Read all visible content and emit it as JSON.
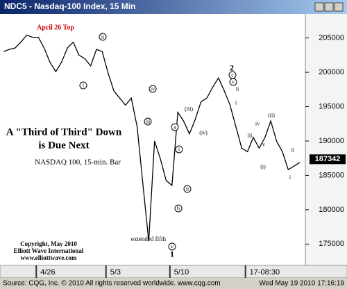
{
  "chart_data": {
    "type": "line",
    "title": "NDC5 - Nasdaq-100 Index, 15 Min",
    "categories": [
      null,
      null,
      null,
      null,
      null,
      null,
      "4/26",
      null,
      null,
      null,
      null,
      null,
      null,
      null,
      null,
      null,
      null,
      null,
      "5/3",
      null,
      null,
      null,
      null,
      null,
      null,
      null,
      null,
      null,
      null,
      "5/10",
      null,
      null,
      null,
      null,
      null,
      null,
      null,
      null,
      null,
      null,
      null,
      null,
      "17-08:30",
      null,
      null,
      null,
      null,
      null,
      null,
      null,
      null,
      null
    ],
    "series": [
      {
        "name": "NDC5",
        "color": "#000000",
        "values": [
          203020,
          203330,
          203540,
          204380,
          205420,
          205100,
          205100,
          203540,
          201460,
          200100,
          201460,
          203540,
          204380,
          202500,
          201980,
          200940,
          203330,
          203020,
          199900,
          197290,
          196250,
          195210,
          196250,
          192080,
          183750,
          175420,
          190000,
          187400,
          184270,
          183540,
          194170,
          192920,
          191040,
          193130,
          195730,
          196250,
          197810,
          199170,
          197290,
          195210,
          192080,
          188960,
          188440,
          190520,
          188960,
          190520,
          192920,
          190000,
          188440,
          185830,
          186350,
          186870
        ]
      }
    ],
    "ylim": [
      171900,
      208500
    ],
    "yticks": [
      175000,
      180000,
      185000,
      190000,
      195000,
      200000,
      205000
    ],
    "last_price": 187342,
    "headline": [
      "A \"Third of Third\" Down",
      "is Due Next"
    ],
    "subtitle": "NASDAQ 100, 15-min. Bar",
    "top_label": "April 26 Top",
    "note": "extended fifth",
    "copyright": [
      "Copyright, May 2010",
      "Elliott Wave International",
      "www.elliottwave.com"
    ],
    "waves": [
      {
        "text": "i",
        "circled": true
      },
      {
        "text": "ii",
        "circled": true
      },
      {
        "text": "iii",
        "circled": true
      },
      {
        "text": "iv",
        "circled": true
      },
      {
        "text": "v",
        "circled": true
      },
      {
        "text": "a",
        "circled": true
      },
      {
        "text": "i",
        "circled": true
      },
      {
        "text": "ii",
        "circled": true
      },
      {
        "text": "b",
        "circled": true
      },
      {
        "text": "c",
        "circled": true
      },
      {
        "text": "v",
        "circled": true
      },
      {
        "text": "2",
        "circled": false
      },
      {
        "text": "1",
        "circled": false
      },
      {
        "text": "(iii)",
        "circled": false
      },
      {
        "text": "(iv)",
        "circled": false
      },
      {
        "text": "ii",
        "circled": false
      },
      {
        "text": "i",
        "circled": false
      },
      {
        "text": "iii",
        "circled": false
      },
      {
        "text": "iv",
        "circled": false
      },
      {
        "text": "v",
        "circled": false
      },
      {
        "text": "(i)",
        "circled": false
      },
      {
        "text": "(ii)",
        "circled": false
      },
      {
        "text": "ii",
        "circled": false
      },
      {
        "text": "i",
        "circled": false
      }
    ],
    "footer_left": "Source: CQG, Inc. © 2010 All rights reserved worldwide. www.cqg.com",
    "footer_right": "Wed May 19 2010 17:16:19"
  }
}
